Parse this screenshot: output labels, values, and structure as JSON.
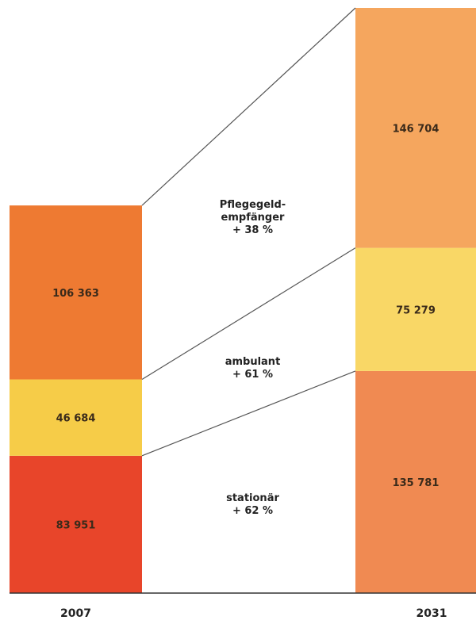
{
  "chart_data": {
    "type": "bar",
    "stacked": true,
    "categories": [
      "2007",
      "2031"
    ],
    "series": [
      {
        "key": "stationaer",
        "values": [
          83951,
          135781
        ],
        "colors": [
          "#e8452a",
          "#f08a52"
        ]
      },
      {
        "key": "ambulant",
        "values": [
          46684,
          75279
        ],
        "colors": [
          "#f6cc48",
          "#f9d766"
        ]
      },
      {
        "key": "pflegegeld",
        "values": [
          106363,
          146704
        ],
        "colors": [
          "#ee7a32",
          "#f5a65e"
        ]
      }
    ],
    "value_labels": [
      [
        "83 951",
        "135 781"
      ],
      [
        "46 684",
        "75 279"
      ],
      [
        "106 363",
        "146 704"
      ]
    ],
    "annotations": [
      {
        "lines": [
          "stationär",
          "+ 62 %"
        ]
      },
      {
        "lines": [
          "ambulant",
          "+ 61 %"
        ]
      },
      {
        "lines": [
          "Pflegegeld-",
          "empfänger",
          "+ 38 %"
        ]
      }
    ]
  }
}
